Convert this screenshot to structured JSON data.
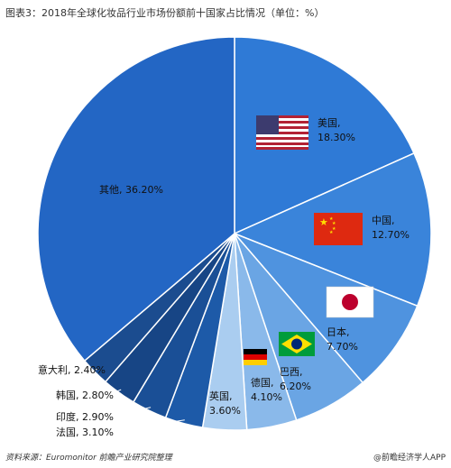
{
  "chart_data": {
    "type": "pie",
    "title": "图表3：2018年全球化妆品行业市场份额前十国家占比情况（单位：%）",
    "slices": [
      {
        "label": "美国",
        "value": 18.3,
        "value_text": "18.30%",
        "color": "#2f7ad6",
        "flag": "us-flag"
      },
      {
        "label": "中国",
        "value": 12.7,
        "value_text": "12.70%",
        "color": "#3a84da",
        "flag": "china-flag"
      },
      {
        "label": "日本",
        "value": 7.7,
        "value_text": "7.70%",
        "color": "#4f93df",
        "flag": "japan-flag"
      },
      {
        "label": "巴西",
        "value": 6.2,
        "value_text": "6.20%",
        "color": "#6aa5e4",
        "flag": "brazil-flag"
      },
      {
        "label": "德国",
        "value": 4.1,
        "value_text": "4.10%",
        "color": "#8ab9ea",
        "flag": "germany-flag"
      },
      {
        "label": "英国",
        "value": 3.6,
        "value_text": "3.60%",
        "color": "#aacdf0",
        "flag": ""
      },
      {
        "label": "法国",
        "value": 3.1,
        "value_text": "3.10%",
        "color": "#1d5aa8",
        "flag": ""
      },
      {
        "label": "印度",
        "value": 2.9,
        "value_text": "2.90%",
        "color": "#1a4f96",
        "flag": ""
      },
      {
        "label": "韩国",
        "value": 2.8,
        "value_text": "2.80%",
        "color": "#174585",
        "flag": ""
      },
      {
        "label": "意大利",
        "value": 2.4,
        "value_text": "2.40%",
        "color": "#1b4c8f",
        "flag": ""
      },
      {
        "label": "其他",
        "value": 36.2,
        "value_text": "36.20%",
        "color": "#2366c4",
        "flag": ""
      }
    ]
  },
  "footer": {
    "source": "资料来源：Euromonitor 前瞻产业研究院整理",
    "brand": "@前瞻经济学人APP"
  }
}
